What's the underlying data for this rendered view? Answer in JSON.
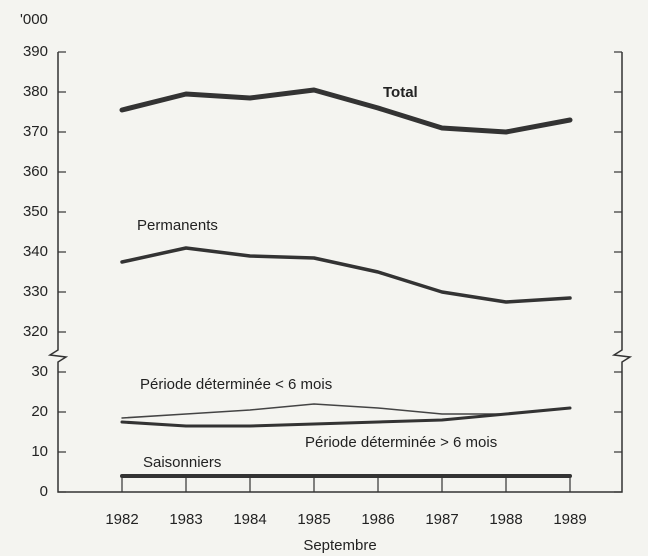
{
  "chart_data": [
    {
      "type": "line",
      "y_label": "'000",
      "ylim": [
        315,
        390
      ],
      "yticks": [
        320,
        330,
        340,
        350,
        360,
        370,
        380,
        390
      ],
      "series": [
        {
          "name": "Total",
          "color": "#333333",
          "values": [
            375.5,
            379.5,
            378.5,
            380.5,
            376,
            371,
            370,
            373
          ]
        },
        {
          "name": "Permanents",
          "color": "#333333",
          "values": [
            337.5,
            341,
            339,
            338.5,
            335,
            330,
            327.5,
            328.5
          ]
        }
      ]
    },
    {
      "type": "line",
      "x_label": "Septembre",
      "categories": [
        "1982",
        "1983",
        "1984",
        "1985",
        "1986",
        "1987",
        "1988",
        "1989"
      ],
      "ylim": [
        0,
        32
      ],
      "yticks": [
        0,
        10,
        20,
        30
      ],
      "series": [
        {
          "name": "Période déterminée < 6 mois",
          "color": "#444444",
          "values": [
            18.5,
            19.5,
            20.5,
            22,
            21,
            19.5,
            19.5,
            21
          ]
        },
        {
          "name": "Période déterminée > 6 mois",
          "color": "#333333",
          "values": [
            17.5,
            16.5,
            16.5,
            17,
            17.5,
            18,
            19.5,
            21
          ]
        },
        {
          "name": "Saisonniers",
          "color": "#333333",
          "values": [
            4,
            4,
            4,
            4,
            4,
            4,
            4,
            4
          ]
        }
      ]
    }
  ]
}
